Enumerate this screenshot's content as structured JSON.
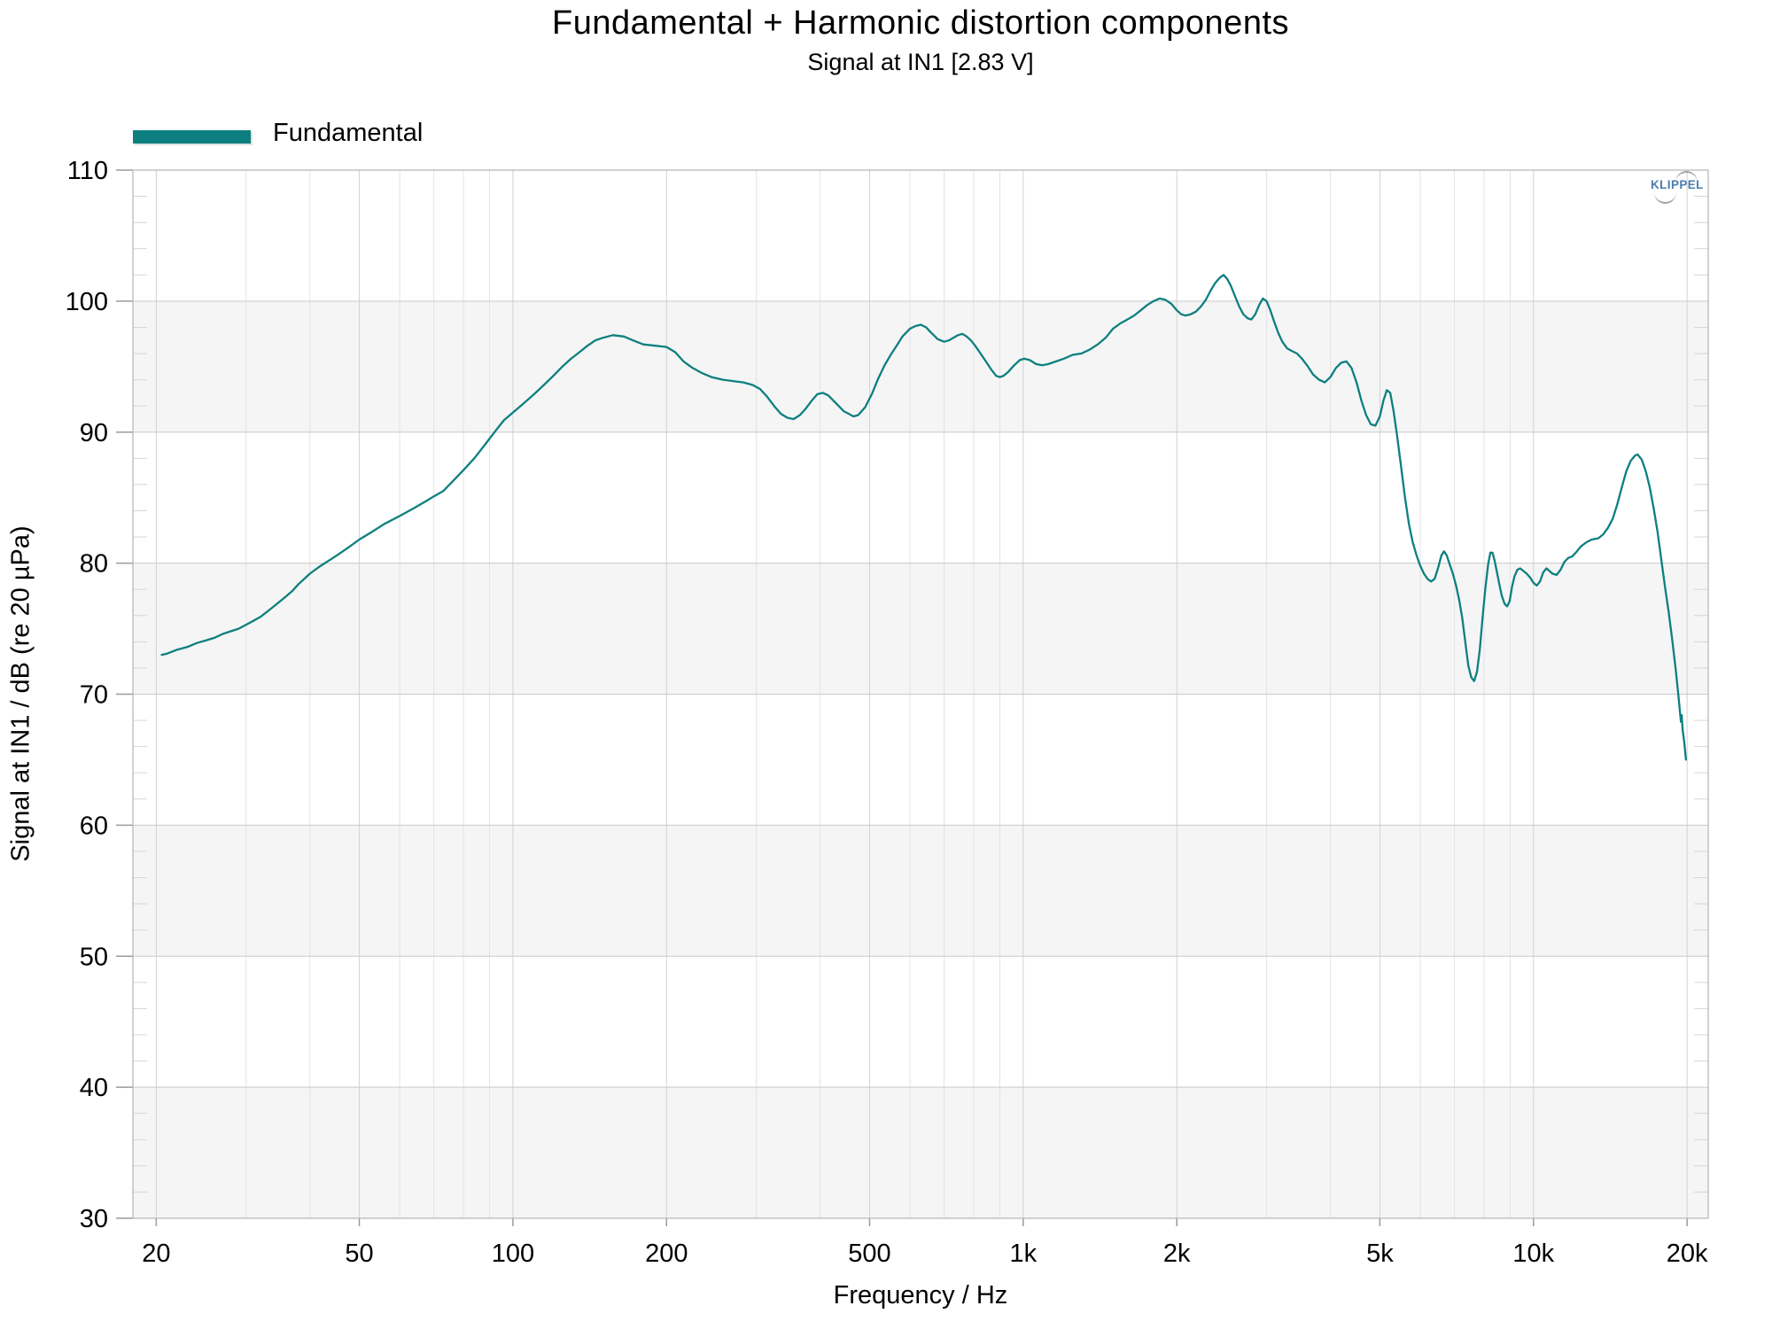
{
  "title": "Fundamental + Harmonic distortion components",
  "subtitle": "Signal at IN1 [2.83 V]",
  "legend": {
    "fundamental_label": "Fundamental",
    "fundamental_color": "#0d7f80"
  },
  "watermark": {
    "text": "KLIPPEL",
    "color": "#4d7dad"
  },
  "axes": {
    "x_title": "Frequency / Hz",
    "y_title": "Signal at IN1 / dB (re 20 µPa)"
  },
  "chart_data": {
    "type": "line",
    "title": "Fundamental + Harmonic distortion components",
    "subtitle": "Signal at IN1 [2.83 V]",
    "xlabel": "Frequency / Hz",
    "ylabel": "Signal at IN1 / dB (re 20 µPa)",
    "x_scale": "log",
    "x_range": [
      18,
      22000
    ],
    "y_range": [
      30,
      110
    ],
    "grid": true,
    "legend_position": "top-left",
    "band_color": "#f5f5f5",
    "shaded_bands": [
      [
        90,
        100
      ],
      [
        70,
        80
      ],
      [
        50,
        60
      ],
      [
        30,
        40
      ]
    ],
    "x_major_ticks": [
      {
        "value": 20,
        "label": "20"
      },
      {
        "value": 50,
        "label": "50"
      },
      {
        "value": 100,
        "label": "100"
      },
      {
        "value": 200,
        "label": "200"
      },
      {
        "value": 500,
        "label": "500"
      },
      {
        "value": 1000,
        "label": "1k"
      },
      {
        "value": 2000,
        "label": "2k"
      },
      {
        "value": 5000,
        "label": "5k"
      },
      {
        "value": 10000,
        "label": "10k"
      },
      {
        "value": 20000,
        "label": "20k"
      }
    ],
    "x_minor_ticks": [
      30,
      40,
      60,
      70,
      80,
      90,
      300,
      400,
      600,
      700,
      800,
      900,
      3000,
      4000,
      6000,
      7000,
      8000,
      9000
    ],
    "y_major_ticks": [
      30,
      40,
      50,
      60,
      70,
      80,
      90,
      100,
      110
    ],
    "y_minor_step": 2,
    "series": [
      {
        "name": "Fundamental",
        "color": "#0d7f80",
        "points": [
          [
            20.5,
            73.0
          ],
          [
            21,
            73.1
          ],
          [
            22,
            73.4
          ],
          [
            23,
            73.6
          ],
          [
            24,
            73.9
          ],
          [
            25,
            74.1
          ],
          [
            26,
            74.3
          ],
          [
            27,
            74.6
          ],
          [
            28,
            74.8
          ],
          [
            29,
            75.0
          ],
          [
            30,
            75.3
          ],
          [
            31,
            75.6
          ],
          [
            32,
            75.9
          ],
          [
            33,
            76.3
          ],
          [
            34,
            76.7
          ],
          [
            35,
            77.1
          ],
          [
            36,
            77.5
          ],
          [
            37,
            77.9
          ],
          [
            38,
            78.4
          ],
          [
            39,
            78.8
          ],
          [
            40,
            79.2
          ],
          [
            42,
            79.8
          ],
          [
            44,
            80.3
          ],
          [
            46,
            80.8
          ],
          [
            48,
            81.3
          ],
          [
            50,
            81.8
          ],
          [
            53,
            82.4
          ],
          [
            56,
            83.0
          ],
          [
            60,
            83.6
          ],
          [
            64,
            84.2
          ],
          [
            68,
            84.8
          ],
          [
            70,
            85.1
          ],
          [
            73,
            85.5
          ],
          [
            76,
            86.2
          ],
          [
            80,
            87.1
          ],
          [
            84,
            88.0
          ],
          [
            88,
            89.0
          ],
          [
            92,
            90.0
          ],
          [
            96,
            90.9
          ],
          [
            100,
            91.5
          ],
          [
            105,
            92.2
          ],
          [
            110,
            92.9
          ],
          [
            115,
            93.6
          ],
          [
            120,
            94.3
          ],
          [
            125,
            95.0
          ],
          [
            130,
            95.6
          ],
          [
            135,
            96.1
          ],
          [
            140,
            96.6
          ],
          [
            145,
            97.0
          ],
          [
            150,
            97.2
          ],
          [
            157,
            97.4
          ],
          [
            165,
            97.3
          ],
          [
            172,
            97.0
          ],
          [
            180,
            96.7
          ],
          [
            190,
            96.6
          ],
          [
            200,
            96.5
          ],
          [
            208,
            96.1
          ],
          [
            216,
            95.4
          ],
          [
            225,
            94.9
          ],
          [
            235,
            94.5
          ],
          [
            245,
            94.2
          ],
          [
            258,
            94.0
          ],
          [
            270,
            93.9
          ],
          [
            283,
            93.8
          ],
          [
            295,
            93.6
          ],
          [
            305,
            93.3
          ],
          [
            315,
            92.7
          ],
          [
            325,
            92.0
          ],
          [
            335,
            91.4
          ],
          [
            345,
            91.1
          ],
          [
            355,
            91.0
          ],
          [
            365,
            91.3
          ],
          [
            375,
            91.8
          ],
          [
            385,
            92.4
          ],
          [
            395,
            92.9
          ],
          [
            405,
            93.0
          ],
          [
            415,
            92.8
          ],
          [
            425,
            92.4
          ],
          [
            435,
            92.0
          ],
          [
            445,
            91.6
          ],
          [
            455,
            91.4
          ],
          [
            465,
            91.2
          ],
          [
            475,
            91.3
          ],
          [
            490,
            91.9
          ],
          [
            505,
            92.9
          ],
          [
            520,
            94.1
          ],
          [
            535,
            95.1
          ],
          [
            550,
            95.9
          ],
          [
            565,
            96.6
          ],
          [
            580,
            97.3
          ],
          [
            600,
            97.9
          ],
          [
            615,
            98.1
          ],
          [
            630,
            98.2
          ],
          [
            645,
            98.0
          ],
          [
            660,
            97.6
          ],
          [
            680,
            97.1
          ],
          [
            700,
            96.9
          ],
          [
            715,
            97.0
          ],
          [
            730,
            97.2
          ],
          [
            745,
            97.4
          ],
          [
            760,
            97.5
          ],
          [
            775,
            97.3
          ],
          [
            790,
            97.0
          ],
          [
            805,
            96.6
          ],
          [
            825,
            96.0
          ],
          [
            845,
            95.4
          ],
          [
            865,
            94.8
          ],
          [
            885,
            94.3
          ],
          [
            900,
            94.2
          ],
          [
            915,
            94.3
          ],
          [
            935,
            94.6
          ],
          [
            960,
            95.1
          ],
          [
            985,
            95.5
          ],
          [
            1005,
            95.6
          ],
          [
            1030,
            95.5
          ],
          [
            1060,
            95.2
          ],
          [
            1090,
            95.1
          ],
          [
            1120,
            95.2
          ],
          [
            1160,
            95.4
          ],
          [
            1200,
            95.6
          ],
          [
            1250,
            95.9
          ],
          [
            1300,
            96.0
          ],
          [
            1350,
            96.3
          ],
          [
            1400,
            96.7
          ],
          [
            1450,
            97.2
          ],
          [
            1500,
            97.9
          ],
          [
            1550,
            98.3
          ],
          [
            1600,
            98.6
          ],
          [
            1650,
            98.9
          ],
          [
            1700,
            99.3
          ],
          [
            1750,
            99.7
          ],
          [
            1800,
            100.0
          ],
          [
            1850,
            100.2
          ],
          [
            1900,
            100.1
          ],
          [
            1950,
            99.8
          ],
          [
            2000,
            99.3
          ],
          [
            2040,
            99.0
          ],
          [
            2080,
            98.9
          ],
          [
            2130,
            99.0
          ],
          [
            2180,
            99.2
          ],
          [
            2230,
            99.6
          ],
          [
            2280,
            100.1
          ],
          [
            2330,
            100.8
          ],
          [
            2380,
            101.4
          ],
          [
            2430,
            101.8
          ],
          [
            2470,
            102.0
          ],
          [
            2510,
            101.7
          ],
          [
            2550,
            101.2
          ],
          [
            2600,
            100.4
          ],
          [
            2650,
            99.6
          ],
          [
            2700,
            99.0
          ],
          [
            2750,
            98.7
          ],
          [
            2800,
            98.6
          ],
          [
            2850,
            99.0
          ],
          [
            2900,
            99.7
          ],
          [
            2950,
            100.2
          ],
          [
            3000,
            100.0
          ],
          [
            3050,
            99.3
          ],
          [
            3100,
            98.5
          ],
          [
            3160,
            97.6
          ],
          [
            3220,
            96.9
          ],
          [
            3290,
            96.4
          ],
          [
            3360,
            96.2
          ],
          [
            3440,
            96.0
          ],
          [
            3520,
            95.6
          ],
          [
            3600,
            95.1
          ],
          [
            3700,
            94.4
          ],
          [
            3800,
            94.0
          ],
          [
            3900,
            93.8
          ],
          [
            4000,
            94.2
          ],
          [
            4100,
            94.9
          ],
          [
            4200,
            95.3
          ],
          [
            4300,
            95.4
          ],
          [
            4400,
            94.9
          ],
          [
            4500,
            93.8
          ],
          [
            4600,
            92.4
          ],
          [
            4700,
            91.3
          ],
          [
            4800,
            90.6
          ],
          [
            4900,
            90.5
          ],
          [
            5000,
            91.2
          ],
          [
            5080,
            92.4
          ],
          [
            5160,
            93.2
          ],
          [
            5240,
            93.0
          ],
          [
            5320,
            91.6
          ],
          [
            5400,
            89.8
          ],
          [
            5500,
            87.4
          ],
          [
            5600,
            85.0
          ],
          [
            5700,
            83.0
          ],
          [
            5800,
            81.6
          ],
          [
            5900,
            80.6
          ],
          [
            6000,
            79.8
          ],
          [
            6100,
            79.2
          ],
          [
            6200,
            78.8
          ],
          [
            6300,
            78.6
          ],
          [
            6400,
            78.8
          ],
          [
            6500,
            79.6
          ],
          [
            6600,
            80.6
          ],
          [
            6680,
            80.9
          ],
          [
            6760,
            80.6
          ],
          [
            6840,
            80.0
          ],
          [
            6950,
            79.2
          ],
          [
            7050,
            78.3
          ],
          [
            7150,
            77.2
          ],
          [
            7250,
            75.8
          ],
          [
            7350,
            74.0
          ],
          [
            7450,
            72.2
          ],
          [
            7550,
            71.3
          ],
          [
            7650,
            71.0
          ],
          [
            7750,
            71.7
          ],
          [
            7850,
            73.4
          ],
          [
            7950,
            75.9
          ],
          [
            8050,
            78.1
          ],
          [
            8150,
            79.9
          ],
          [
            8230,
            80.8
          ],
          [
            8310,
            80.8
          ],
          [
            8390,
            80.2
          ],
          [
            8470,
            79.4
          ],
          [
            8570,
            78.4
          ],
          [
            8670,
            77.5
          ],
          [
            8780,
            76.9
          ],
          [
            8880,
            76.7
          ],
          [
            8980,
            77.1
          ],
          [
            9080,
            78.2
          ],
          [
            9180,
            79.0
          ],
          [
            9300,
            79.5
          ],
          [
            9420,
            79.6
          ],
          [
            9560,
            79.4
          ],
          [
            9700,
            79.2
          ],
          [
            9850,
            78.9
          ],
          [
            10000,
            78.5
          ],
          [
            10150,
            78.3
          ],
          [
            10300,
            78.6
          ],
          [
            10450,
            79.3
          ],
          [
            10600,
            79.6
          ],
          [
            10750,
            79.4
          ],
          [
            10900,
            79.2
          ],
          [
            11100,
            79.1
          ],
          [
            11300,
            79.5
          ],
          [
            11500,
            80.1
          ],
          [
            11700,
            80.4
          ],
          [
            11900,
            80.5
          ],
          [
            12100,
            80.8
          ],
          [
            12400,
            81.3
          ],
          [
            12700,
            81.6
          ],
          [
            13000,
            81.8
          ],
          [
            13400,
            81.9
          ],
          [
            13700,
            82.2
          ],
          [
            14000,
            82.7
          ],
          [
            14300,
            83.4
          ],
          [
            14600,
            84.5
          ],
          [
            14900,
            85.8
          ],
          [
            15200,
            87.0
          ],
          [
            15500,
            87.8
          ],
          [
            15800,
            88.2
          ],
          [
            16000,
            88.3
          ],
          [
            16300,
            87.9
          ],
          [
            16600,
            87.0
          ],
          [
            16900,
            85.8
          ],
          [
            17200,
            84.2
          ],
          [
            17500,
            82.4
          ],
          [
            17800,
            80.3
          ],
          [
            18100,
            78.2
          ],
          [
            18400,
            76.3
          ],
          [
            18700,
            74.2
          ],
          [
            19000,
            71.9
          ],
          [
            19200,
            70.2
          ],
          [
            19350,
            68.8
          ],
          [
            19450,
            67.9
          ],
          [
            19520,
            68.4
          ],
          [
            19600,
            67.3
          ],
          [
            19750,
            66.3
          ],
          [
            19900,
            65.0
          ]
        ]
      }
    ]
  }
}
